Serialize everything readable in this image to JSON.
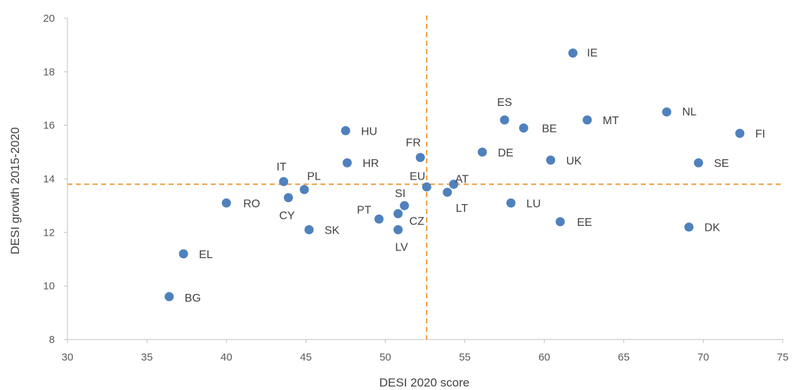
{
  "chart_data": {
    "type": "scatter",
    "title": "",
    "xlabel": "DESI 2020 score",
    "ylabel": "DESI growth 2015-2020",
    "xlim": [
      30,
      75
    ],
    "ylim": [
      8,
      20
    ],
    "xticks": [
      "30",
      "35",
      "40",
      "45",
      "50",
      "55",
      "60",
      "65",
      "70",
      "75"
    ],
    "yticks": [
      "8",
      "10",
      "12",
      "14",
      "16",
      "18",
      "20"
    ],
    "grid": false,
    "reference_lines": {
      "x": 52.6,
      "y": 13.8
    },
    "marker_color": "#4f81bd",
    "reference_line_color": "#ed9a3c",
    "points": [
      {
        "label": "IE",
        "x": 61.8,
        "y": 18.7
      },
      {
        "label": "ES",
        "x": 57.5,
        "y": 16.2
      },
      {
        "label": "BE",
        "x": 58.7,
        "y": 15.9
      },
      {
        "label": "MT",
        "x": 62.7,
        "y": 16.2
      },
      {
        "label": "NL",
        "x": 67.7,
        "y": 16.5
      },
      {
        "label": "FI",
        "x": 72.3,
        "y": 15.7
      },
      {
        "label": "HU",
        "x": 47.5,
        "y": 15.8
      },
      {
        "label": "FR",
        "x": 52.2,
        "y": 14.8
      },
      {
        "label": "DE",
        "x": 56.1,
        "y": 15.0
      },
      {
        "label": "UK",
        "x": 60.4,
        "y": 14.7
      },
      {
        "label": "SE",
        "x": 69.7,
        "y": 14.6
      },
      {
        "label": "HR",
        "x": 47.6,
        "y": 14.6
      },
      {
        "label": "IT",
        "x": 43.6,
        "y": 13.9
      },
      {
        "label": "PL",
        "x": 44.9,
        "y": 13.6
      },
      {
        "label": "EU",
        "x": 52.6,
        "y": 13.7
      },
      {
        "label": "AT",
        "x": 54.3,
        "y": 13.8
      },
      {
        "label": "LT",
        "x": 53.9,
        "y": 13.5
      },
      {
        "label": "SI",
        "x": 51.2,
        "y": 13.0
      },
      {
        "label": "RO",
        "x": 40.0,
        "y": 13.1
      },
      {
        "label": "CY",
        "x": 43.9,
        "y": 13.3
      },
      {
        "label": "LU",
        "x": 57.9,
        "y": 13.1
      },
      {
        "label": "PT",
        "x": 49.6,
        "y": 12.5
      },
      {
        "label": "CZ",
        "x": 50.8,
        "y": 12.7
      },
      {
        "label": "SK",
        "x": 45.2,
        "y": 12.1
      },
      {
        "label": "LV",
        "x": 50.8,
        "y": 12.1
      },
      {
        "label": "EE",
        "x": 61.0,
        "y": 12.4
      },
      {
        "label": "DK",
        "x": 69.1,
        "y": 12.2
      },
      {
        "label": "EL",
        "x": 37.3,
        "y": 11.2
      },
      {
        "label": "BG",
        "x": 36.4,
        "y": 9.6
      }
    ]
  }
}
